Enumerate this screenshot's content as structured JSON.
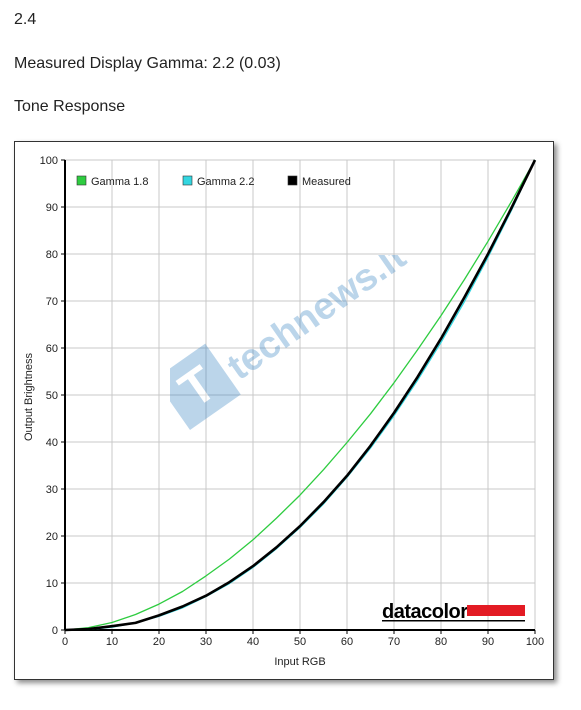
{
  "headings": {
    "version": "2.4",
    "measured_gamma": "Measured Display Gamma: 2.2 (0.03)",
    "section_title": "Tone Response"
  },
  "brand": {
    "logo_text": "datacolor",
    "logo_bar_color": "#e31b23"
  },
  "watermark_text": "technews.lt",
  "chart_data": {
    "type": "line",
    "xlabel": "Input RGB",
    "ylabel": "Output Brightness",
    "xlim": [
      0,
      100
    ],
    "ylim": [
      0,
      100
    ],
    "x_ticks": [
      0,
      10,
      20,
      30,
      40,
      50,
      60,
      70,
      80,
      90,
      100
    ],
    "y_ticks": [
      0,
      10,
      20,
      30,
      40,
      50,
      60,
      70,
      80,
      90,
      100
    ],
    "grid": true,
    "legend_position": "top-left",
    "x": [
      0,
      5,
      10,
      15,
      20,
      25,
      30,
      35,
      40,
      45,
      50,
      55,
      60,
      65,
      70,
      75,
      80,
      85,
      90,
      95,
      100
    ],
    "series": [
      {
        "name": "Gamma 1.8",
        "color": "#2ecc40",
        "values": [
          0,
          0.5,
          1.6,
          3.3,
          5.5,
          8.2,
          11.5,
          15.1,
          19.2,
          23.8,
          28.7,
          34.1,
          39.9,
          46.0,
          52.6,
          59.6,
          66.9,
          74.6,
          82.7,
          91.2,
          100
        ]
      },
      {
        "name": "Gamma 2.2",
        "color": "#33d6e0",
        "values": [
          0,
          0.1,
          0.6,
          1.5,
          2.9,
          4.7,
          7.1,
          9.9,
          13.3,
          17.3,
          21.8,
          26.8,
          32.5,
          38.7,
          45.6,
          53.1,
          61.2,
          69.9,
          79.3,
          89.3,
          100
        ]
      },
      {
        "name": "Measured",
        "color": "#000000",
        "values": [
          0,
          0.2,
          0.8,
          1.5,
          3.1,
          5.0,
          7.3,
          10.2,
          13.6,
          17.6,
          22.1,
          27.2,
          32.8,
          39.2,
          46.2,
          53.8,
          62.0,
          70.8,
          80.0,
          89.8,
          100
        ]
      }
    ]
  }
}
